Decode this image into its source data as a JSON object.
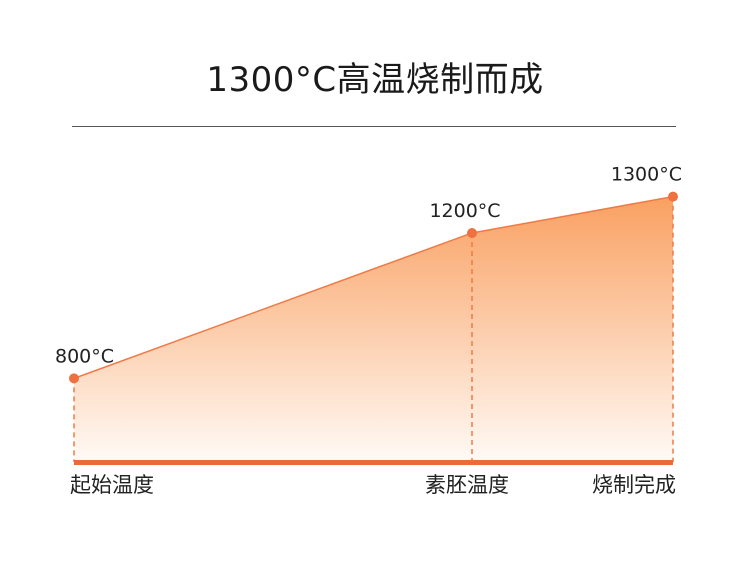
{
  "chart_data": {
    "type": "area",
    "title": "1300°C高温烧制而成",
    "categories": [
      "起始温度",
      "素胚温度",
      "烧制完成"
    ],
    "values": [
      800,
      1200,
      1300
    ],
    "value_labels": [
      "800°C",
      "1200°C",
      "1300°C"
    ],
    "ylim": [
      570,
      1420
    ],
    "grid": false,
    "colors": {
      "line": "#f07a45",
      "marker": "#ef7040",
      "baseline": "#ec6a3a",
      "fill_top": "#f9a061",
      "fill_bottom": "#fffaf6"
    }
  }
}
